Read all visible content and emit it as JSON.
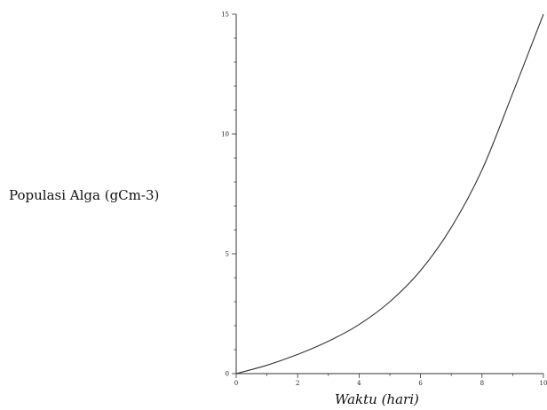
{
  "chart_data": {
    "type": "line",
    "xlabel": "Waktu (hari)",
    "ylabel": "Populasi Alga (gCm-3)",
    "xlim": [
      0,
      10
    ],
    "ylim": [
      0,
      15
    ],
    "x_ticks": [
      0,
      2,
      4,
      6,
      8,
      10
    ],
    "x_tick_labels": [
      "0",
      "2",
      "4",
      "6",
      "8",
      "10"
    ],
    "y_ticks": [
      0,
      5,
      10,
      15
    ],
    "y_tick_labels": [
      "0",
      "5",
      "10",
      "15"
    ],
    "grid": false,
    "series": [
      {
        "x": [
          0,
          1,
          2,
          3,
          4,
          5,
          6,
          7,
          8,
          9,
          10
        ],
        "y": [
          0,
          0.35,
          0.8,
          1.35,
          2.05,
          3.0,
          4.3,
          6.1,
          8.5,
          11.7,
          15.0
        ]
      }
    ]
  }
}
